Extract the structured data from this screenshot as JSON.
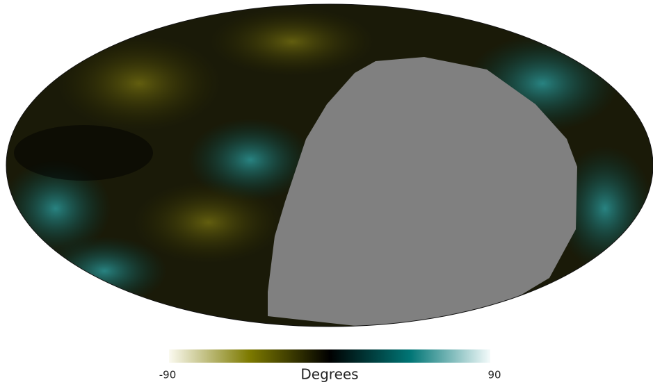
{
  "chart_data": {
    "type": "mollweide",
    "colorbar_label": "Degrees",
    "clim": [
      -90,
      90
    ],
    "cticks": [
      -90,
      90
    ],
    "colormap": [
      "#fbfaf0",
      "#7d7a00",
      "#000000",
      "#007575",
      "#f4fbfb"
    ],
    "mask_color": "#808080"
  }
}
